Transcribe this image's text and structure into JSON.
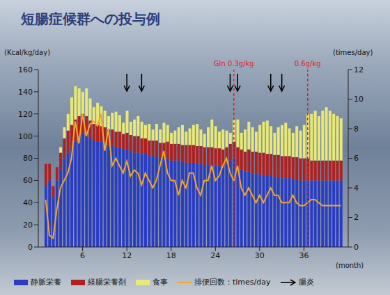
{
  "chart_data": {
    "type": "bar",
    "title": "短腸症候群への投与例",
    "stacked": true,
    "grid": false,
    "legend": "bottom",
    "x": [
      1,
      1.5,
      2,
      2.5,
      3,
      3.5,
      4,
      4.5,
      5,
      5.5,
      6,
      6.5,
      7,
      7.5,
      8,
      8.5,
      9,
      9.5,
      10,
      10.5,
      11,
      11.5,
      12,
      12.5,
      13,
      13.5,
      14,
      14.5,
      15,
      15.5,
      16,
      16.5,
      17,
      17.5,
      18,
      18.5,
      19,
      19.5,
      20,
      20.5,
      21,
      21.5,
      22,
      22.5,
      23,
      23.5,
      24,
      24.5,
      25,
      25.5,
      26,
      26.5,
      27,
      27.5,
      28,
      28.5,
      29,
      29.5,
      30,
      30.5,
      31,
      31.5,
      32,
      32.5,
      33,
      33.5,
      34,
      34.5,
      35,
      35.5,
      36,
      36.5,
      37,
      37.5,
      38,
      38.5,
      39,
      39.5,
      40,
      40.5,
      41
    ],
    "x_label": "(month)",
    "xlim": [
      0,
      42
    ],
    "xticks": [
      6,
      12,
      18,
      24,
      30,
      36
    ],
    "y_label": "(Kcal/kg/day)",
    "ylim": [
      0,
      160
    ],
    "yticks": [
      0,
      20,
      40,
      60,
      80,
      100,
      120,
      140,
      160
    ],
    "y2_label": "(times/day)",
    "y2lim": [
      0,
      12
    ],
    "y2ticks": [
      0,
      2,
      4,
      6,
      8,
      10,
      12
    ],
    "series": [
      {
        "name": "静脈栄養",
        "color": "#2a3cc0",
        "values": [
          55,
          60,
          45,
          60,
          70,
          80,
          85,
          90,
          95,
          100,
          102,
          100,
          98,
          96,
          95,
          95,
          94,
          92,
          92,
          90,
          90,
          88,
          88,
          86,
          85,
          85,
          84,
          84,
          82,
          82,
          82,
          80,
          80,
          80,
          78,
          78,
          78,
          77,
          76,
          76,
          76,
          75,
          75,
          74,
          74,
          74,
          73,
          73,
          72,
          75,
          78,
          80,
          72,
          70,
          68,
          68,
          66,
          66,
          65,
          65,
          64,
          64,
          63,
          63,
          62,
          62,
          62,
          61,
          61,
          60,
          60,
          60,
          60,
          60,
          60,
          60,
          60,
          60,
          60,
          60,
          60
        ]
      },
      {
        "name": "経腸栄養剤",
        "color": "#b02020",
        "values": [
          20,
          15,
          10,
          12,
          15,
          18,
          20,
          20,
          20,
          18,
          18,
          18,
          16,
          15,
          15,
          14,
          14,
          14,
          14,
          14,
          14,
          14,
          15,
          15,
          15,
          15,
          14,
          14,
          14,
          14,
          14,
          14,
          14,
          15,
          15,
          15,
          15,
          15,
          16,
          16,
          16,
          16,
          16,
          16,
          16,
          16,
          16,
          16,
          16,
          15,
          15,
          15,
          18,
          18,
          18,
          20,
          20,
          20,
          20,
          20,
          20,
          20,
          20,
          20,
          20,
          20,
          20,
          20,
          20,
          20,
          20,
          20,
          18,
          18,
          18,
          18,
          18,
          18,
          18,
          18,
          18
        ]
      },
      {
        "name": "食事",
        "color": "#e8e878",
        "values": [
          0,
          0,
          0,
          0,
          5,
          10,
          15,
          25,
          30,
          25,
          20,
          25,
          20,
          15,
          20,
          18,
          15,
          12,
          15,
          18,
          15,
          10,
          20,
          12,
          15,
          18,
          15,
          12,
          15,
          10,
          15,
          12,
          18,
          15,
          10,
          12,
          15,
          18,
          12,
          15,
          18,
          20,
          15,
          12,
          18,
          25,
          20,
          15,
          18,
          15,
          10,
          20,
          25,
          15,
          20,
          25,
          22,
          18,
          25,
          28,
          30,
          25,
          20,
          25,
          28,
          30,
          25,
          22,
          28,
          25,
          30,
          40,
          42,
          45,
          40,
          45,
          48,
          45,
          42,
          40,
          38
        ]
      },
      {
        "name": "排便回数：times/day",
        "type": "line",
        "axis": "y2",
        "color": "#f5a623",
        "values": [
          3.2,
          0.8,
          0.6,
          2.5,
          4.0,
          4.5,
          5.0,
          6.0,
          8.5,
          7.0,
          9.0,
          7.5,
          8.3,
          8.5,
          8.2,
          9.0,
          6.5,
          8.0,
          5.5,
          6.0,
          5.5,
          5.0,
          5.8,
          4.8,
          5.2,
          5.0,
          4.2,
          5.0,
          4.5,
          4.0,
          4.5,
          5.5,
          6.5,
          5.0,
          4.5,
          4.5,
          3.5,
          4.5,
          4.0,
          5.0,
          5.0,
          4.0,
          3.5,
          4.5,
          4.5,
          5.5,
          4.5,
          4.8,
          5.5,
          6.0,
          5.0,
          4.5,
          5.5,
          4.0,
          3.5,
          4.0,
          3.5,
          3.0,
          3.5,
          3.0,
          3.5,
          4.0,
          3.5,
          3.5,
          3.0,
          3.0,
          3.0,
          3.5,
          3.0,
          2.8,
          2.8,
          3.0,
          3.2,
          3.2,
          3.0,
          2.8,
          2.8,
          2.8,
          2.8,
          2.8,
          2.8
        ]
      }
    ],
    "annotations": {
      "arrows": {
        "label": "腸炎",
        "x": [
          12,
          14,
          26,
          27,
          31.5,
          33
        ]
      },
      "lines": [
        {
          "x": 26.5,
          "label": "Gln 0.3g/kg",
          "color": "#e02020"
        },
        {
          "x": 36.5,
          "label": "0.6g/kg",
          "color": "#e02020"
        }
      ]
    }
  }
}
